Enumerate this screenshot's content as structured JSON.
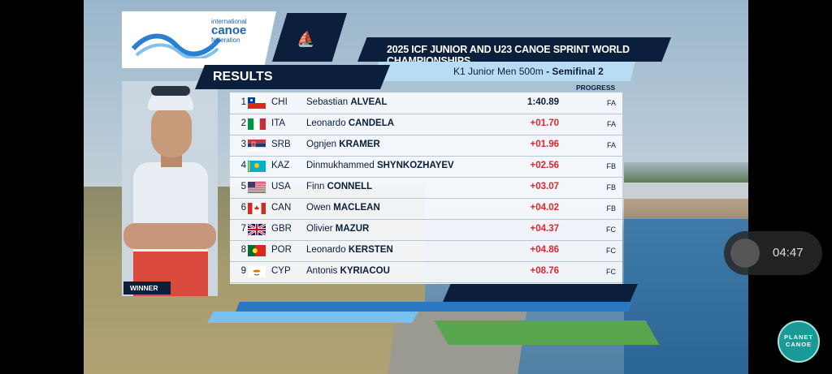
{
  "broadcast": {
    "event_title": "2025 ICF JUNIOR AND U23 CANOE SPRINT WORLD CHAMPIONSHIPS",
    "race_name": "K1 Junior Men 500m",
    "race_stage": "- Semifinal 2",
    "results_label": "RESULTS",
    "progress_header": "PROGRESS",
    "logo_line1": "international",
    "logo_line2": "canoe",
    "logo_line3": "federation",
    "winner_label": "WINNER"
  },
  "results": [
    {
      "rank": "1",
      "country": "CHI",
      "flag": "chile",
      "first": "Sebastian",
      "last": "ALVEAL",
      "time": "1:40.89",
      "progress": "FA"
    },
    {
      "rank": "2",
      "country": "ITA",
      "flag": "italy",
      "first": "Leonardo",
      "last": "CANDELA",
      "time": "+01.70",
      "progress": "FA"
    },
    {
      "rank": "3",
      "country": "SRB",
      "flag": "serbia",
      "first": "Ognjen",
      "last": "KRAMER",
      "time": "+01.96",
      "progress": "FA"
    },
    {
      "rank": "4",
      "country": "KAZ",
      "flag": "kazakhstan",
      "first": "Dinmukhammed",
      "last": "SHYNKOZHAYEV",
      "time": "+02.56",
      "progress": "FB"
    },
    {
      "rank": "5",
      "country": "USA",
      "flag": "usa",
      "first": "Finn",
      "last": "CONNELL",
      "time": "+03.07",
      "progress": "FB"
    },
    {
      "rank": "6",
      "country": "CAN",
      "flag": "canada",
      "first": "Owen",
      "last": "MACLEAN",
      "time": "+04.02",
      "progress": "FB"
    },
    {
      "rank": "7",
      "country": "GBR",
      "flag": "uk",
      "first": "Olivier",
      "last": "MAZUR",
      "time": "+04.37",
      "progress": "FC"
    },
    {
      "rank": "8",
      "country": "POR",
      "flag": "portugal",
      "first": "Leonardo",
      "last": "KERSTEN",
      "time": "+04.86",
      "progress": "FC"
    },
    {
      "rank": "9",
      "country": "CYP",
      "flag": "cyprus",
      "first": "Antonis",
      "last": "KYRIACOU",
      "time": "+08.76",
      "progress": "FC"
    }
  ],
  "player": {
    "timer": "04:47"
  },
  "watermark": {
    "line1": "PLANET",
    "line2": "CANOE"
  },
  "colors": {
    "navy": "#0b1e3b",
    "accent_blue": "#2b78c2",
    "light_blue": "#b8dcf4",
    "behind_red": "#e0262b"
  }
}
